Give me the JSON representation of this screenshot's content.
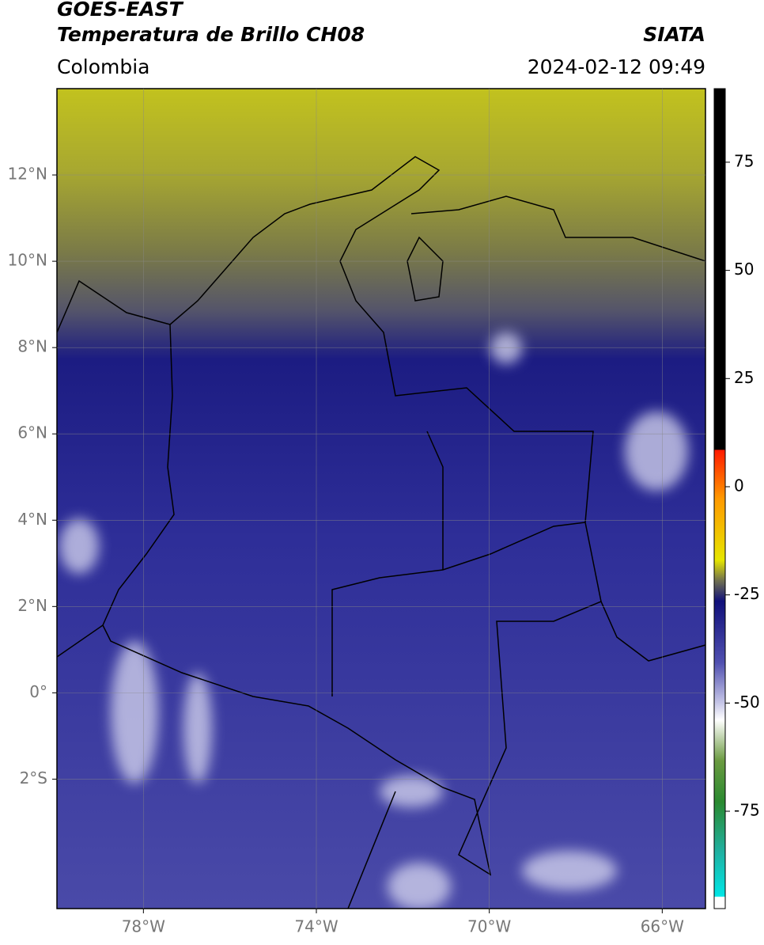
{
  "header": {
    "title": "GOES-EAST",
    "subtitle": "Temperatura de Brillo CH08",
    "region": "Colombia",
    "source": "SIATA",
    "datetime": "2024-02-12 09:49"
  },
  "map": {
    "xlim": [
      -80,
      -65
    ],
    "ylim": [
      -5,
      14
    ],
    "xticks": [
      {
        "value": -78,
        "label": "78°W"
      },
      {
        "value": -74,
        "label": "74°W"
      },
      {
        "value": -70,
        "label": "70°W"
      },
      {
        "value": -66,
        "label": "66°W"
      }
    ],
    "yticks": [
      {
        "value": 12,
        "label": "12°N"
      },
      {
        "value": 10,
        "label": "10°N"
      },
      {
        "value": 8,
        "label": "8°N"
      },
      {
        "value": 6,
        "label": "6°N"
      },
      {
        "value": 4,
        "label": "4°N"
      },
      {
        "value": 2,
        "label": "2°N"
      },
      {
        "value": 0,
        "label": "0°"
      },
      {
        "value": -2,
        "label": "2°S"
      }
    ]
  },
  "colorbar": {
    "lim": [
      -97.5,
      92
    ],
    "ticks": [
      75,
      50,
      25,
      0,
      -25,
      -50,
      -75
    ]
  }
}
